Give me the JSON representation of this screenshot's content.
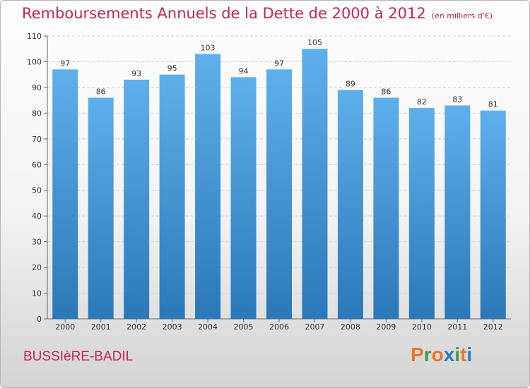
{
  "header": {
    "title": "Remboursements Annuels de la Dette de 2000 à 2012",
    "unit": "(en milliers d'€)"
  },
  "footer": {
    "commune": "BUSSIèRE-BADIL",
    "logo_text": "Proxiti"
  },
  "colors": {
    "title": "#c2245a",
    "bar_top": "#5eb0ec",
    "bar_bottom": "#2a78b8",
    "logo": [
      "#e8772e",
      "#3aa14a",
      "#e8772e",
      "#2a78c8",
      "#3aa14a",
      "#e8772e",
      "#2a78c8"
    ]
  },
  "chart_data": {
    "type": "bar",
    "title": "Remboursements Annuels de la Dette de 2000 à 2012",
    "subtitle": "(en milliers d'€)",
    "categories": [
      "2000",
      "2001",
      "2002",
      "2003",
      "2004",
      "2005",
      "2006",
      "2007",
      "2008",
      "2009",
      "2010",
      "2011",
      "2012"
    ],
    "values": [
      97,
      86,
      93,
      95,
      103,
      94,
      97,
      105,
      89,
      86,
      82,
      83,
      81
    ],
    "ylim": [
      0,
      110
    ],
    "yticks": [
      0,
      10,
      20,
      30,
      40,
      50,
      60,
      70,
      80,
      90,
      100,
      110
    ],
    "grid": true,
    "legend": "none"
  }
}
